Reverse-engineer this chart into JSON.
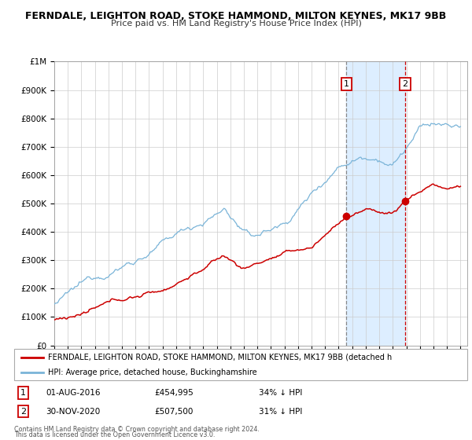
{
  "title": "FERNDALE, LEIGHTON ROAD, STOKE HAMMOND, MILTON KEYNES, MK17 9BB",
  "subtitle": "Price paid vs. HM Land Registry's House Price Index (HPI)",
  "xlim": [
    1995,
    2025.5
  ],
  "ylim": [
    0,
    1000000
  ],
  "yticks": [
    0,
    100000,
    200000,
    300000,
    400000,
    500000,
    600000,
    700000,
    800000,
    900000,
    1000000
  ],
  "ytick_labels": [
    "£0",
    "£100K",
    "£200K",
    "£300K",
    "£400K",
    "£500K",
    "£600K",
    "£700K",
    "£800K",
    "£900K",
    "£1M"
  ],
  "hpi_color": "#7ab4d8",
  "price_color": "#cc0000",
  "shade_color": "#ddeeff",
  "marker1_date": 2016.58,
  "marker1_price": 454995,
  "marker1_label": "1",
  "marker1_text": "01-AUG-2016",
  "marker1_value": "£454,995",
  "marker1_pct": "34% ↓ HPI",
  "marker1_vline_color": "#888888",
  "marker2_date": 2020.92,
  "marker2_price": 507500,
  "marker2_label": "2",
  "marker2_text": "30-NOV-2020",
  "marker2_value": "£507,500",
  "marker2_pct": "31% ↓ HPI",
  "marker2_vline_color": "#cc0000",
  "legend_label_price": "FERNDALE, LEIGHTON ROAD, STOKE HAMMOND, MILTON KEYNES, MK17 9BB (detached h",
  "legend_label_hpi": "HPI: Average price, detached house, Buckinghamshire",
  "footer1": "Contains HM Land Registry data © Crown copyright and database right 2024.",
  "footer2": "This data is licensed under the Open Government Licence v3.0.",
  "bg_color": "#ffffff",
  "grid_color": "#cccccc"
}
